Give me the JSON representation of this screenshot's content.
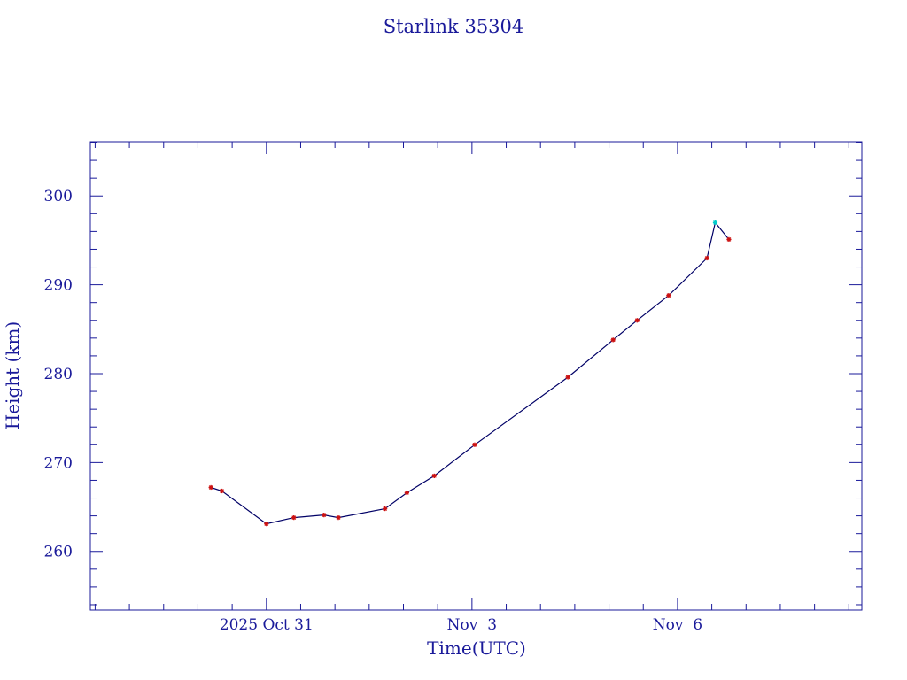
{
  "chart_data": {
    "type": "line",
    "title": "Starlink 35304",
    "xlabel": "Time(UTC)",
    "ylabel": "Height (km)",
    "x_ticks": [
      {
        "label": "2025 Oct 31",
        "day": 31.0
      },
      {
        "label": "Nov  3",
        "day": 34.0
      },
      {
        "label": "Nov  6",
        "day": 37.0
      }
    ],
    "y_ticks": [
      {
        "label": "260",
        "value": 260
      },
      {
        "label": "270",
        "value": 270
      },
      {
        "label": "280",
        "value": 280
      },
      {
        "label": "290",
        "value": 290
      },
      {
        "label": "300",
        "value": 300
      }
    ],
    "xlim": [
      28.43,
      39.69
    ],
    "ylim": [
      253.4,
      306.1
    ],
    "x_minor_step_days": 0.5,
    "y_minor_step": 2,
    "grid": false,
    "series": [
      {
        "color": "#000066",
        "marker_color": "#cc1111",
        "highlight_color": "#00cccc",
        "points": [
          {
            "day": 30.19,
            "height": 267.2
          },
          {
            "day": 30.35,
            "height": 266.8
          },
          {
            "day": 31.0,
            "height": 263.1
          },
          {
            "day": 31.4,
            "height": 263.8
          },
          {
            "day": 31.84,
            "height": 264.1
          },
          {
            "day": 32.05,
            "height": 263.8
          },
          {
            "day": 32.73,
            "height": 264.8
          },
          {
            "day": 33.05,
            "height": 266.6
          },
          {
            "day": 33.45,
            "height": 268.5
          },
          {
            "day": 34.04,
            "height": 272.0
          },
          {
            "day": 35.4,
            "height": 279.6
          },
          {
            "day": 36.06,
            "height": 283.8
          },
          {
            "day": 36.41,
            "height": 286.0
          },
          {
            "day": 36.87,
            "height": 288.8
          },
          {
            "day": 37.43,
            "height": 293.0
          },
          {
            "day": 37.55,
            "height": 297.0,
            "highlight": true
          },
          {
            "day": 37.75,
            "height": 295.1
          }
        ]
      }
    ]
  }
}
